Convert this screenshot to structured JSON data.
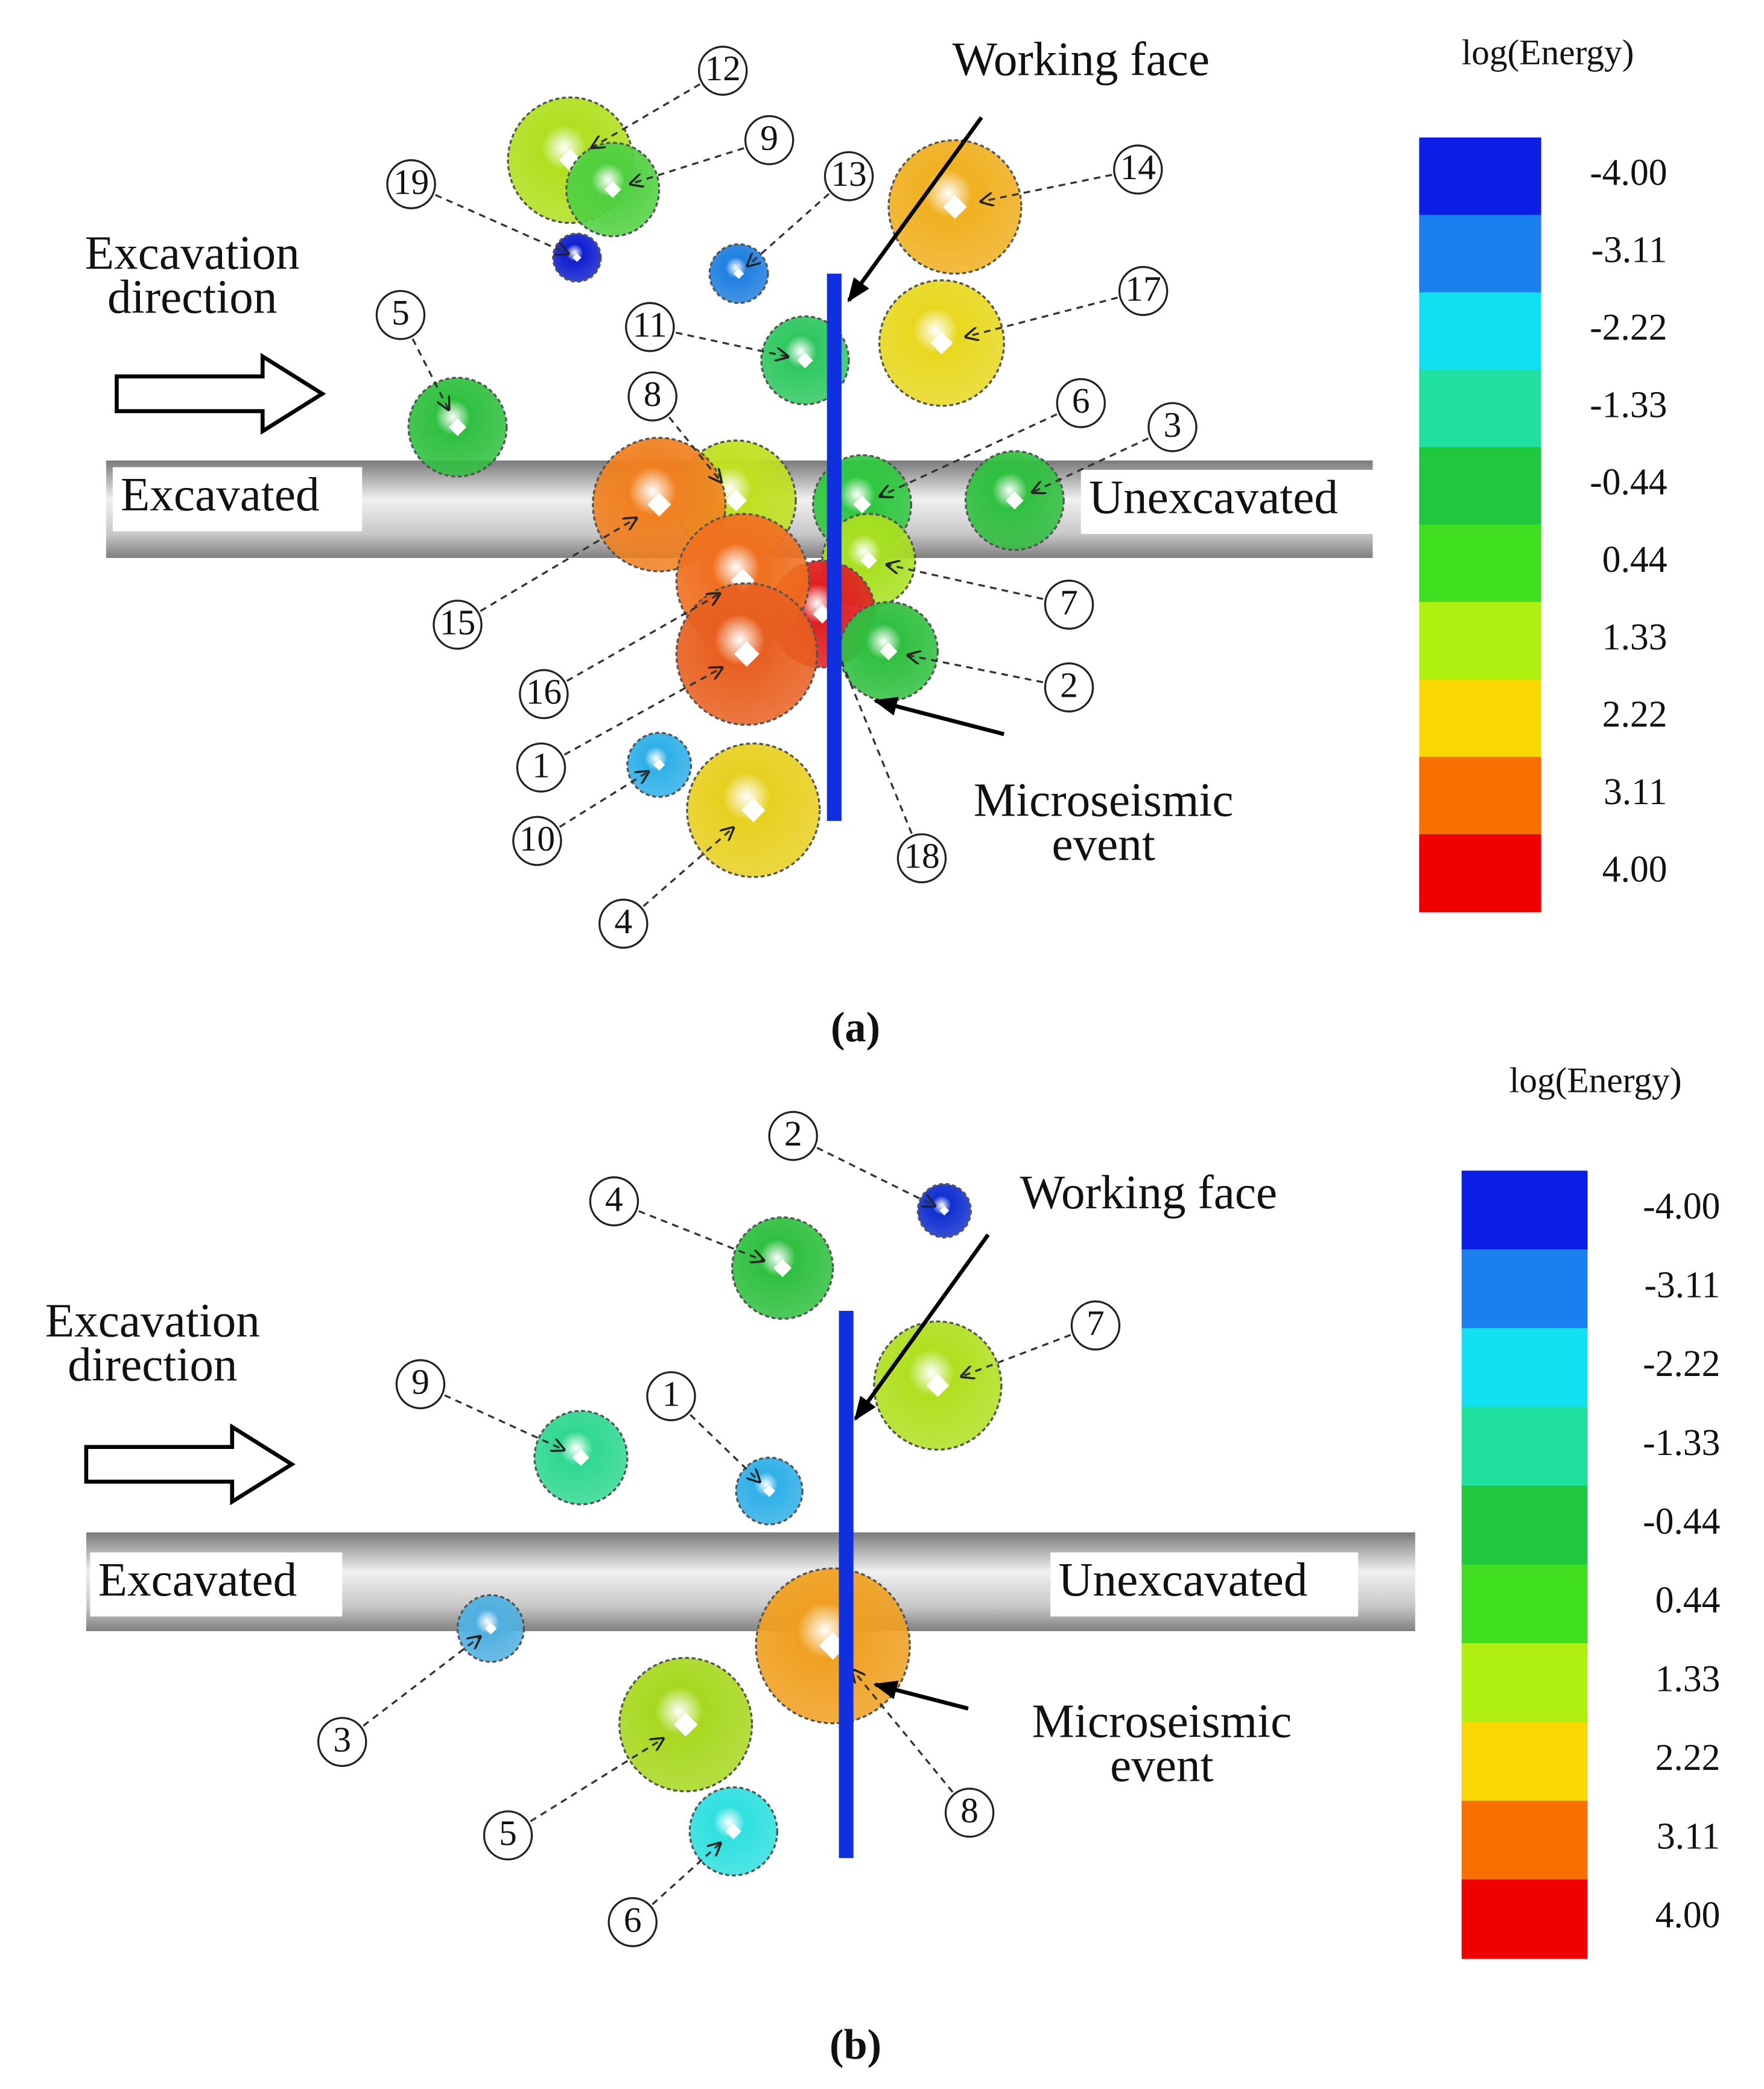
{
  "panels": [
    {
      "caption": "(a)",
      "working_face": "Working face",
      "microseismic_event": [
        "Microseismic",
        "event"
      ],
      "excavation_direction": [
        "Excavation",
        "direction"
      ],
      "excavated": "Excavated",
      "unexcavated": "Unexcavated",
      "legend": {
        "title": "log(Energy)",
        "labels": [
          "-4.00",
          "-3.11",
          "-2.22",
          "-1.33",
          "-0.44",
          "0.44",
          "1.33",
          "2.22",
          "3.11",
          "4.00"
        ],
        "colors": [
          "#0a1ee6",
          "#1a80f0",
          "#10e0f0",
          "#20e0a0",
          "#20c840",
          "#40e020",
          "#b0f010",
          "#f8d800",
          "#f87000",
          "#f00000"
        ]
      },
      "events": [
        {
          "label": "12",
          "color": "#b0e020"
        },
        {
          "label": "9",
          "color": "#50d040"
        },
        {
          "label": "19",
          "color": "#1020d0"
        },
        {
          "label": "13",
          "color": "#2080e0"
        },
        {
          "label": "14",
          "color": "#f0b020"
        },
        {
          "label": "17",
          "color": "#e8d820"
        },
        {
          "label": "11",
          "color": "#30c860"
        },
        {
          "label": "5",
          "color": "#30c040"
        },
        {
          "label": "3",
          "color": "#30c040"
        },
        {
          "label": "8",
          "color": "#c0e020"
        },
        {
          "label": "15",
          "color": "#f08020"
        },
        {
          "label": "6",
          "color": "#30c840"
        },
        {
          "label": "7",
          "color": "#a8e020"
        },
        {
          "label": "18",
          "color": "#e02020"
        },
        {
          "label": "2",
          "color": "#30c040"
        },
        {
          "label": "16",
          "color": "#f07020"
        },
        {
          "label": "1",
          "color": "#e86020"
        },
        {
          "label": "10",
          "color": "#30b0e8"
        },
        {
          "label": "4",
          "color": "#e8d020"
        }
      ]
    },
    {
      "caption": "(b)",
      "working_face": "Working face",
      "microseismic_event": [
        "Microseismic",
        "event"
      ],
      "excavation_direction": [
        "Excavation",
        "direction"
      ],
      "excavated": "Excavated",
      "unexcavated": "Unexcavated",
      "legend": {
        "title": "log(Energy)",
        "labels": [
          "-4.00",
          "-3.11",
          "-2.22",
          "-1.33",
          "-0.44",
          "0.44",
          "1.33",
          "2.22",
          "3.11",
          "4.00"
        ],
        "colors": [
          "#0a1ee6",
          "#1a80f0",
          "#10e0f0",
          "#20e0a0",
          "#20c840",
          "#40e020",
          "#b0f010",
          "#f8d800",
          "#f87000",
          "#f00000"
        ]
      },
      "events": [
        {
          "label": "2",
          "color": "#1030d0"
        },
        {
          "label": "4",
          "color": "#30c040"
        },
        {
          "label": "7",
          "color": "#b0e020"
        },
        {
          "label": "9",
          "color": "#30d890"
        },
        {
          "label": "1",
          "color": "#30b0e8"
        },
        {
          "label": "3",
          "color": "#50b0e0"
        },
        {
          "label": "8",
          "color": "#f0a020"
        },
        {
          "label": "5",
          "color": "#a8d820"
        },
        {
          "label": "6",
          "color": "#30e0e0"
        }
      ]
    }
  ]
}
